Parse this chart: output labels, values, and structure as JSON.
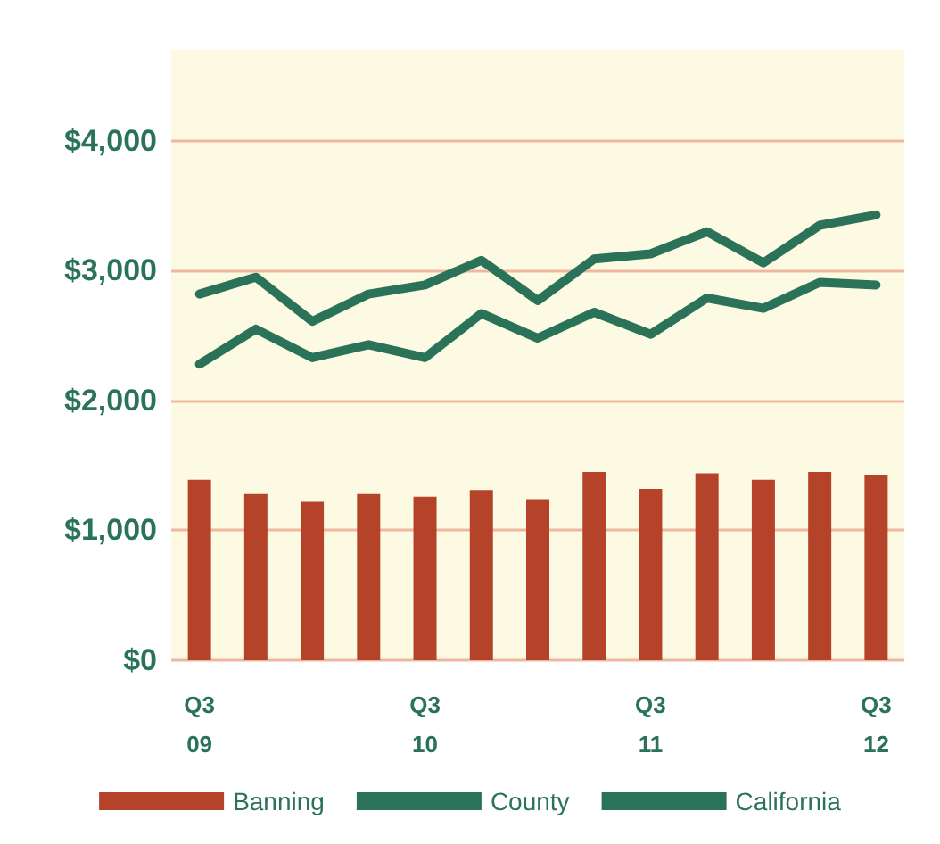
{
  "chart_data": {
    "type": "bar",
    "categories": [
      "Q3\n09",
      null,
      null,
      null,
      "Q3\n10",
      null,
      null,
      null,
      "Q3\n11",
      null,
      null,
      null,
      "Q3\n12"
    ],
    "series": [
      {
        "name": "Banning",
        "color": "#b5432a",
        "values": [
          1390,
          1280,
          1220,
          1280,
          1260,
          1310,
          1240,
          1450,
          1320,
          1440,
          1390,
          1450,
          1430
        ]
      },
      {
        "name": "County",
        "type": "line",
        "color": "#2a7358",
        "values": [
          2280,
          2550,
          2330,
          2430,
          2330,
          2670,
          2480,
          2680,
          2510,
          2790,
          2710,
          2910,
          2890
        ]
      },
      {
        "name": "California",
        "type": "line",
        "color": "#2a7358",
        "values": [
          2820,
          2950,
          2610,
          2820,
          2890,
          3080,
          2770,
          3090,
          3130,
          3300,
          3060,
          3350,
          3430
        ]
      }
    ],
    "ylim": [
      0,
      4700
    ],
    "yticks": [
      {
        "value": 0,
        "label": "$0"
      },
      {
        "value": 1000,
        "label": "$1,000"
      },
      {
        "value": 2000,
        "label": "$2,000"
      },
      {
        "value": 3000,
        "label": "$3,000"
      },
      {
        "value": 4000,
        "label": "$4,000"
      }
    ],
    "grid": "y",
    "legend": "bottom",
    "marker": "none",
    "line_style": "solid"
  }
}
